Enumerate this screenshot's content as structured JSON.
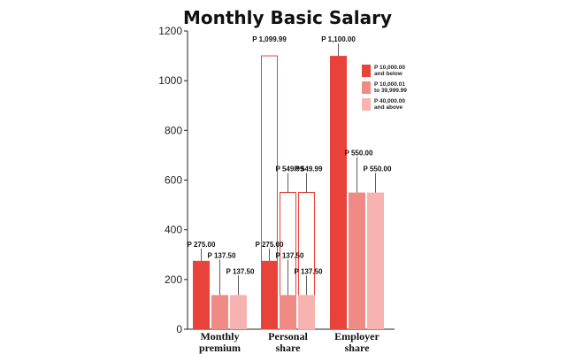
{
  "chart_data": {
    "type": "bar",
    "title": "Monthly Basic Salary",
    "xlabel": "",
    "ylabel": "",
    "ylim": [
      0,
      1200
    ],
    "yticks": [
      "0",
      "200",
      "400",
      "600",
      "800",
      "1000",
      "1200"
    ],
    "categories": [
      "Monthly premium",
      "Personal share",
      "Employer share"
    ],
    "category_lines": [
      [
        "Monthly",
        "premium"
      ],
      [
        "Personal",
        "share"
      ],
      [
        "Employer",
        "share"
      ]
    ],
    "series": [
      {
        "name": "P 10,000.00 and below",
        "legend_lines": [
          "P 10,000.00",
          "and below"
        ],
        "color": "#e8423b",
        "values": [
          275,
          275,
          1100
        ],
        "labels": [
          "P 275.00",
          "P 275.00",
          "P 1,100.00"
        ]
      },
      {
        "name": "P 10,000.01 to 39,999.99",
        "legend_lines": [
          "P 10,000.01",
          "to 39,999.99"
        ],
        "color": "#f08a85",
        "values": [
          137.5,
          137.5,
          550
        ],
        "labels": [
          "P 137.50",
          "P 137.50",
          "P 550.00"
        ]
      },
      {
        "name": "P 40,000.00 and above",
        "legend_lines": [
          "P 40,000.00",
          "and above"
        ],
        "color": "#f6b3b0",
        "values": [
          137.5,
          137.5,
          550
        ],
        "labels": [
          "P 137.50",
          "P 137.50",
          "P 550.00"
        ]
      }
    ],
    "outline_bars": [
      {
        "category": 1,
        "series": 0,
        "value": 1099.99,
        "label": "P 1,099.99"
      },
      {
        "category": 1,
        "series": 1,
        "value": 549.99,
        "label": "P 549.99"
      },
      {
        "category": 1,
        "series": 2,
        "value": 549.99,
        "label": "P 549.99"
      }
    ],
    "outline_color": "#e8423b",
    "grid": false,
    "legend_position": "top-right"
  }
}
